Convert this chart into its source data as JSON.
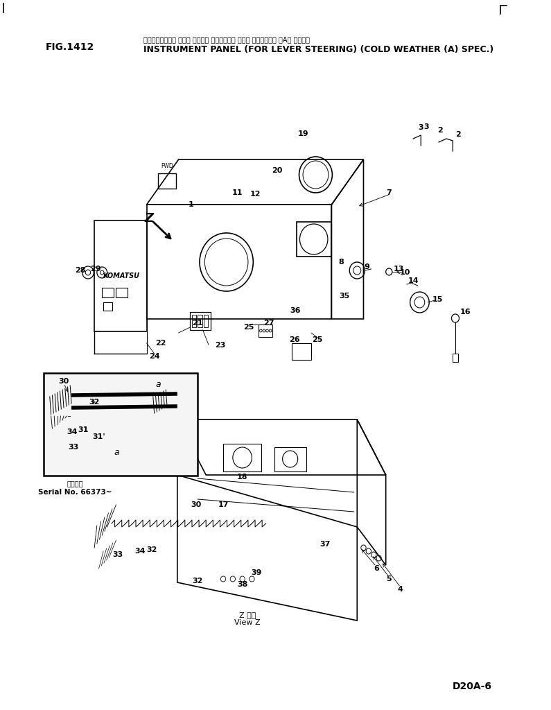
{
  "fig_label": "FIG.1412",
  "japanese_title": "インストルメント パネル （レバー ステアリング ヨウ） （カンレイチ （A） シヨウ）",
  "english_title": "INSTRUMENT PANEL (FOR LEVER STEERING) (COLD WEATHER (A) SPEC.)",
  "model": "D20A-6",
  "background_color": "#ffffff",
  "line_color": "#000000",
  "serial_note_jp": "適用番号",
  "serial_note": "Serial No. 66373~",
  "view_label_jp": "Z 方向",
  "view_label_en": "View Z"
}
